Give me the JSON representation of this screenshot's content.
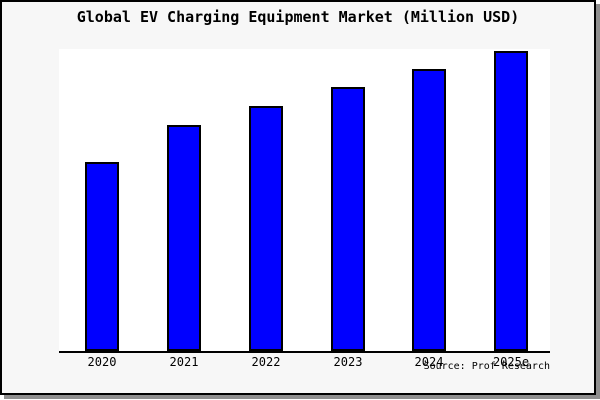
{
  "page": {
    "backdrop_color": "#ffffff",
    "card_background": "#f7f7f7",
    "plot_background": "#ffffff",
    "border_color": "#000000",
    "shadow_color": "#8f8f8f"
  },
  "source": "Source: Prof Research",
  "chart_data": {
    "type": "bar",
    "title": "Global EV Charging Equipment Market (Million USD)",
    "categories": [
      "2020",
      "2021",
      "2022",
      "2023",
      "2024",
      "2025e"
    ],
    "values": [
      62.6,
      74.8,
      81.1,
      87.4,
      93.4,
      99.3
    ],
    "value_scale_note": "relative bar heights as % of plot height; y-axis has no ticks, labels or gridlines in the image",
    "ylim": [
      0,
      100
    ],
    "xlabel": "",
    "ylabel": "",
    "grid": false,
    "legend": false,
    "bar_color": "#0000ff",
    "bar_edge_color": "#000000",
    "axis_line_color": "#000000",
    "source": "Source: Prof Research"
  }
}
